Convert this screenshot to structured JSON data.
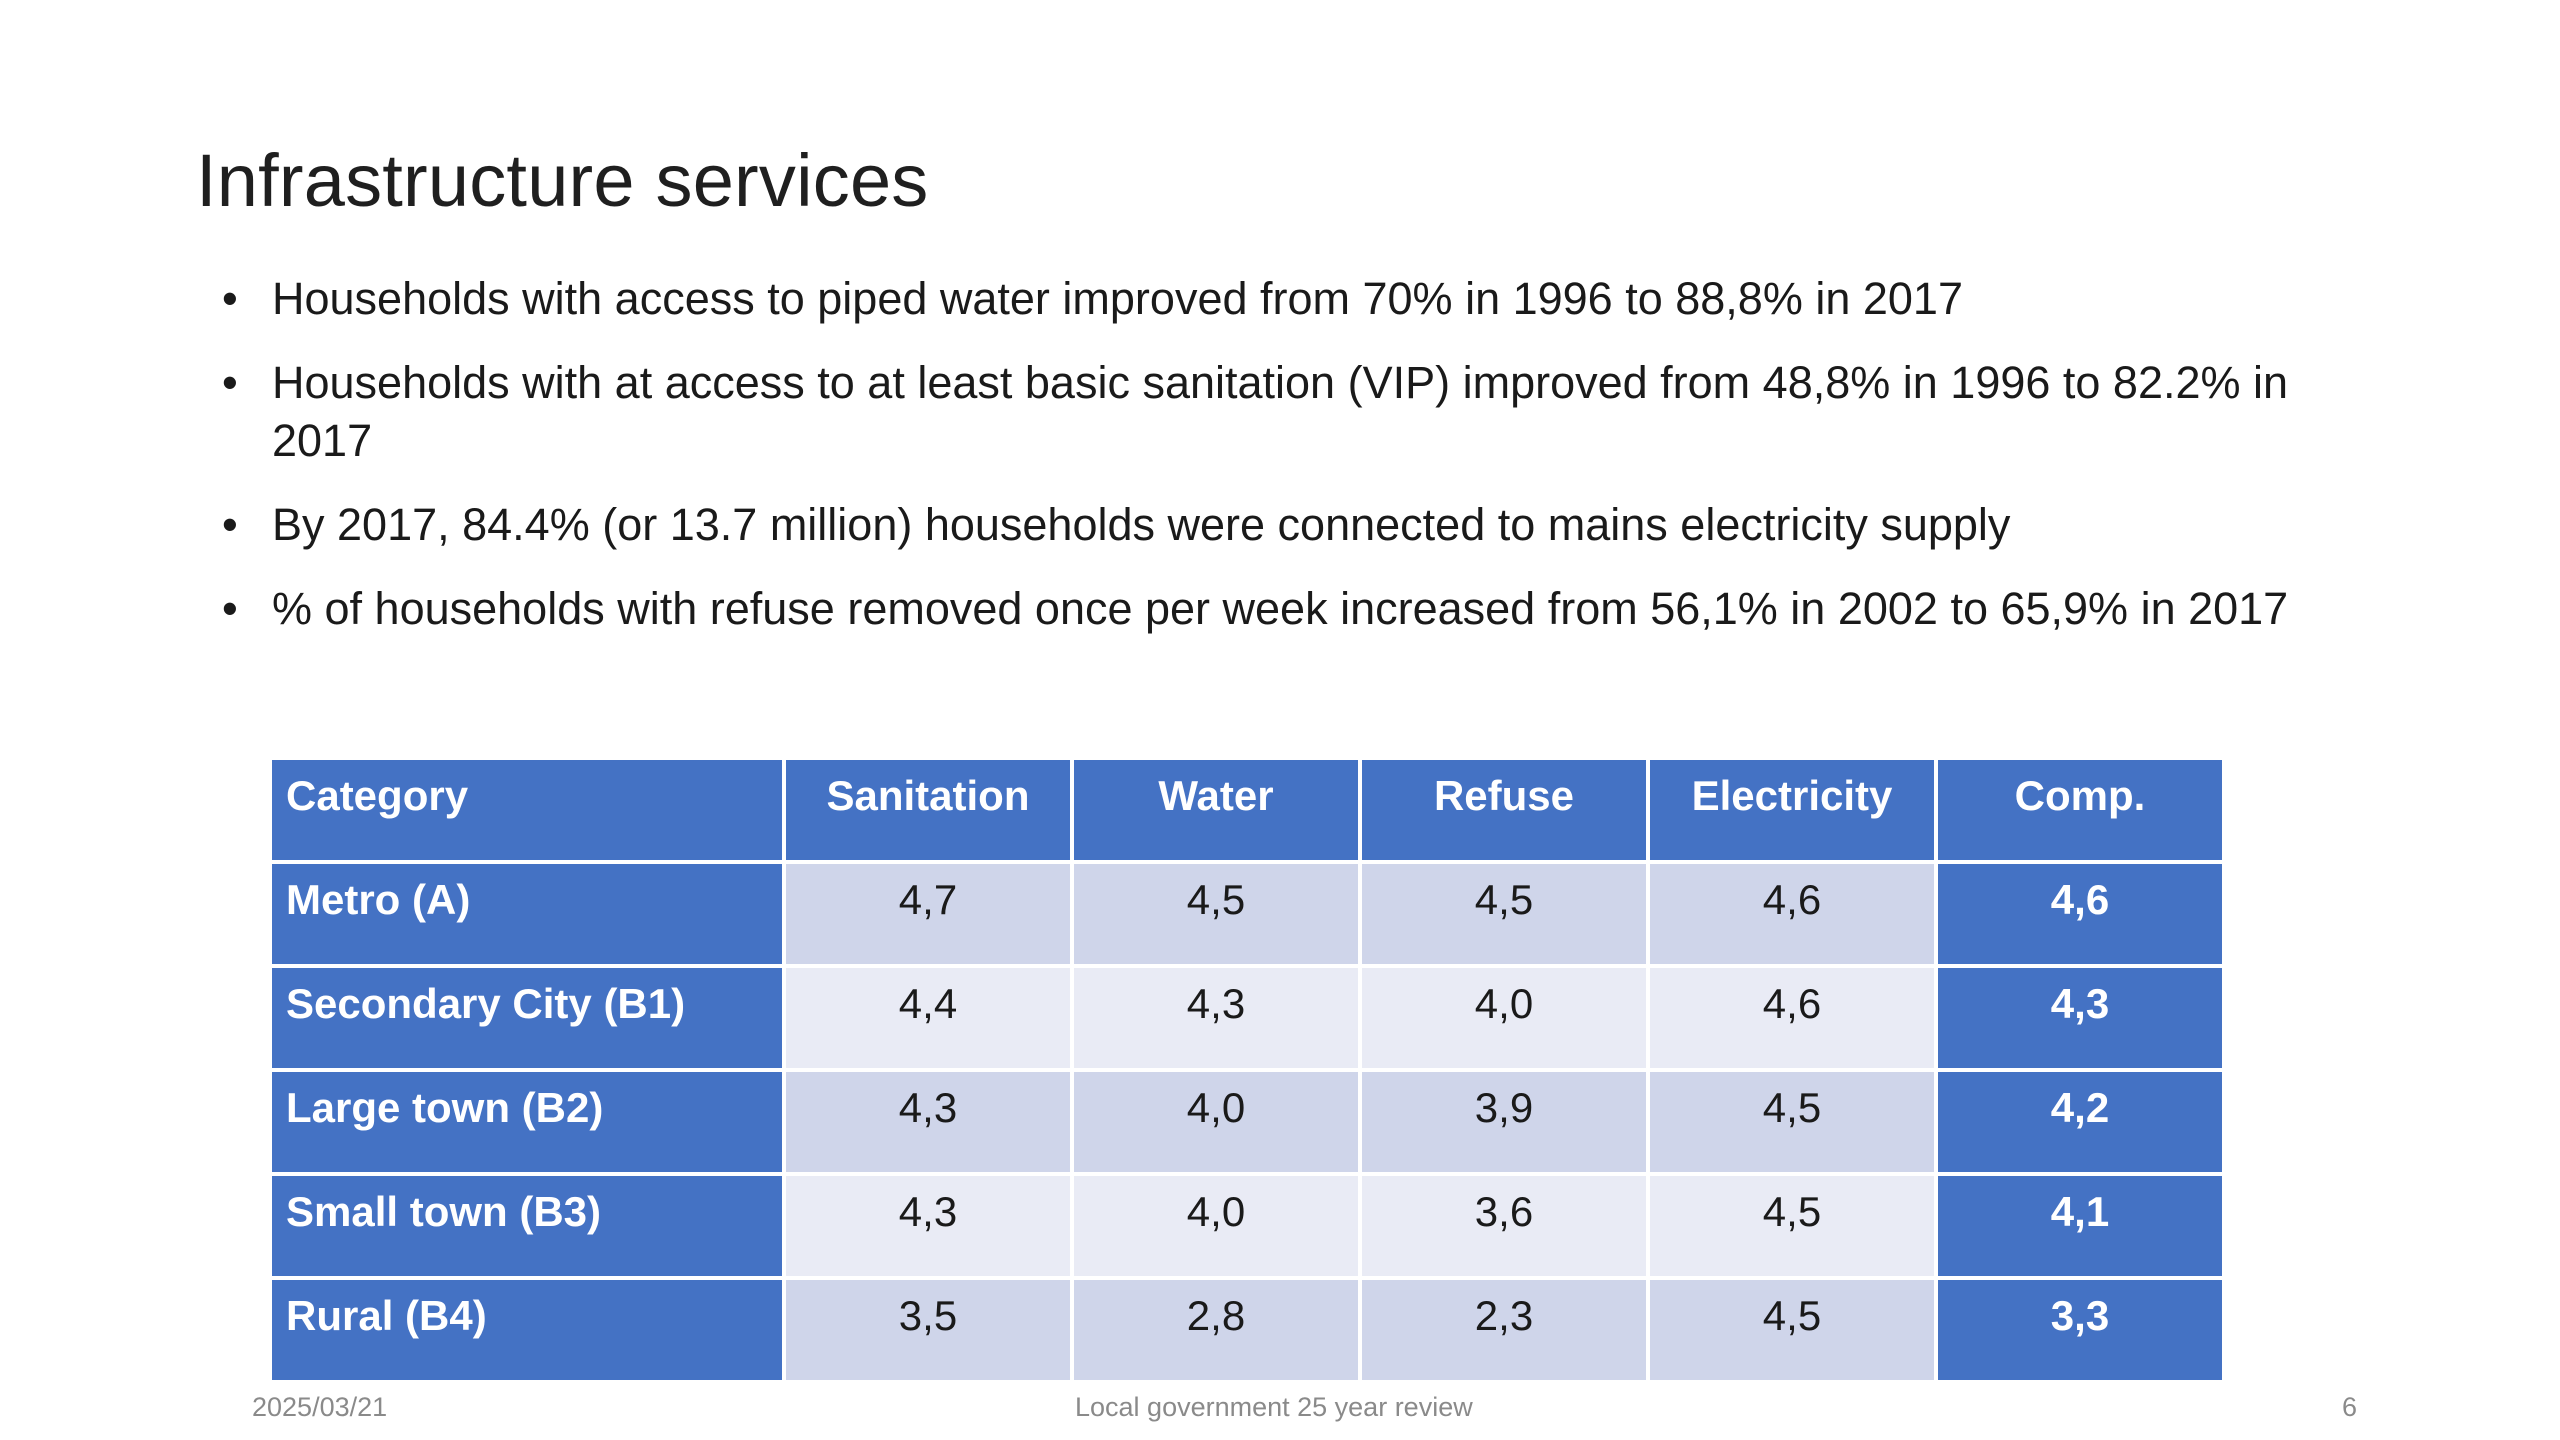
{
  "slide": {
    "title": "Infrastructure services",
    "bullets": [
      "Households with access to piped water improved from 70% in 1996 to 88,8% in 2017",
      "Households with at access to at least basic sanitation (VIP) improved from 48,8% in 1996 to 82.2% in 2017",
      "By 2017, 84.4% (or 13.7 million) households were connected to mains electricity supply",
      "% of households with refuse removed once per week increased from 56,1% in 2002 to 65,9% in 2017"
    ],
    "bullet_symbol": "•"
  },
  "table": {
    "headers": [
      "Category",
      "Sanitation",
      "Water",
      "Refuse",
      "Electricity",
      "Comp."
    ],
    "rows": [
      [
        "Metro (A)",
        "4,7",
        "4,5",
        "4,5",
        "4,6",
        "4,6"
      ],
      [
        "Secondary City (B1)",
        "4,4",
        "4,3",
        "4,0",
        "4,6",
        "4,3"
      ],
      [
        "Large town (B2)",
        "4,3",
        "4,0",
        "3,9",
        "4,5",
        "4,2"
      ],
      [
        "Small town (B3)",
        "4,3",
        "4,0",
        "3,6",
        "4,5",
        "4,1"
      ],
      [
        "Rural (B4)",
        "3,5",
        "2,8",
        "2,3",
        "4,5",
        "3,3"
      ]
    ]
  },
  "footer": {
    "date": "2025/03/21",
    "center": "Local government 25 year review",
    "page": "6"
  },
  "colors": {
    "header_blue": "#4472c4",
    "band_dark": "#cfd5ea",
    "band_light": "#e9ebf5"
  }
}
